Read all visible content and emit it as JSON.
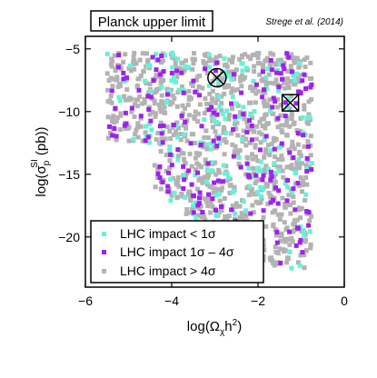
{
  "chart_data": {
    "type": "scatter",
    "title_box": "Planck upper limit",
    "citation": "Strege et al. (2014)",
    "xlabel": "log(Ω",
    "xlabel_sub": "χ",
    "xlabel_rest": "h",
    "xlabel_sup": "2",
    "xlabel_end": ")",
    "ylabel": "log(σ",
    "ylabel_sub": "p",
    "ylabel_sup": "SI",
    "ylabel_end": " (pb))",
    "xlim": [
      -6,
      0
    ],
    "ylim": [
      -24,
      -4
    ],
    "xticks": [
      -6,
      -4,
      -2,
      0
    ],
    "xtick_labels": [
      "−6",
      "−4",
      "−2",
      "0"
    ],
    "yticks": [
      -5,
      -10,
      -15,
      -20
    ],
    "ytick_labels": [
      "−5",
      "−10",
      "−15",
      "−20"
    ],
    "legend_position": "bottom-left",
    "series": [
      {
        "name": "LHC impact > 4σ",
        "label_prefix": "LHC impact > 4",
        "label_sigma": "σ",
        "color": "#b3b3b3"
      },
      {
        "name": "LHC impact < 1σ",
        "label_prefix": "LHC impact < 1",
        "label_sigma": "σ",
        "color": "#66f2d9"
      },
      {
        "name": "LHC impact 1σ – 4σ",
        "label_prefix": "LHC impact 1",
        "label_mid": "σ – 4",
        "label_sigma": "σ",
        "color": "#a020f0"
      }
    ],
    "benchmarks": [
      {
        "name": "circle-x",
        "x": -2.95,
        "y": -7.3
      },
      {
        "name": "box-x",
        "x": -1.25,
        "y": -9.3
      }
    ]
  }
}
